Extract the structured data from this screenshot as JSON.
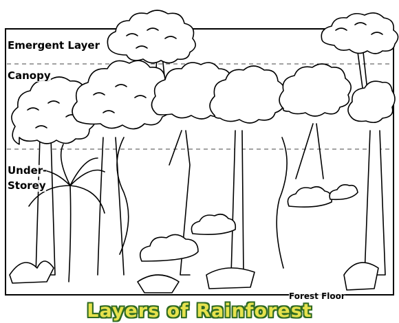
{
  "layers": {
    "emergent": "Emergent Layer",
    "canopy": "Canopy",
    "under_line1": "Under-",
    "under_line2": "Storey",
    "floor": "Forest Floor"
  },
  "title": "Layers of Rainforest",
  "colors": {
    "title_fill": "#e6e24d",
    "title_outline": "#2f6a23",
    "line": "#000000"
  }
}
